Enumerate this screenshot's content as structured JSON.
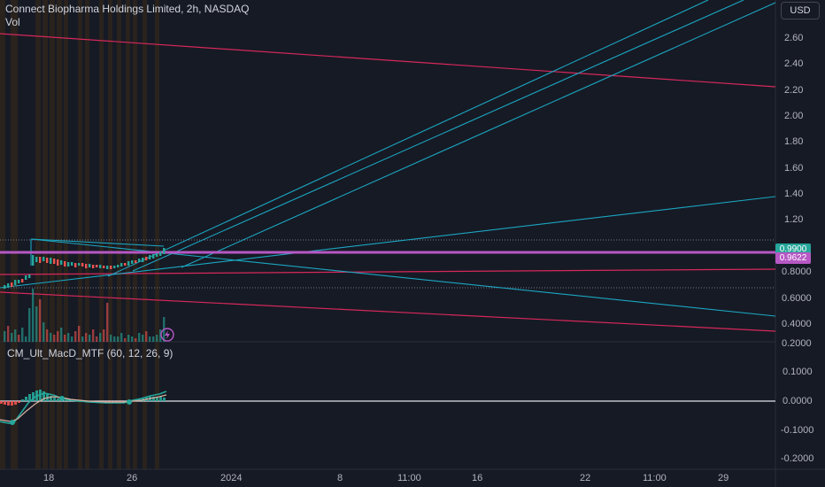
{
  "header": {
    "title": "Connect Biopharma Holdings Limited, 2h, NASDAQ",
    "vol_label": "Vol",
    "currency_button": "USD"
  },
  "indicator": {
    "title": "CM_Ult_MacD_MTF (60, 12, 26, 9)"
  },
  "price_axis": {
    "ticks": [
      "2.60",
      "2.40",
      "2.20",
      "2.00",
      "1.80",
      "1.60",
      "1.40",
      "1.20",
      "0.8000",
      "0.6000",
      "0.4000",
      "0.2000"
    ],
    "tags": [
      {
        "text": "0.9900",
        "color": "#26a69a"
      },
      {
        "text": "0.9622",
        "color": "#b658c4"
      }
    ]
  },
  "macd_axis": {
    "ticks": [
      "0.1000",
      "0.0000",
      "-0.1000",
      "-0.2000"
    ]
  },
  "time_axis": {
    "ticks": [
      "18",
      "26",
      "2024",
      "8",
      "11:00",
      "16",
      "22",
      "11:00",
      "29"
    ]
  },
  "colors": {
    "background": "#161a25",
    "cyan": "#1ba6c0",
    "magenta": "#d6285a",
    "purple_line": "#b658c4",
    "up": "#26a69a",
    "down": "#ef5350",
    "session_stripe": "#3b2a18"
  },
  "icons": {
    "lightning": "lightning-icon"
  }
}
